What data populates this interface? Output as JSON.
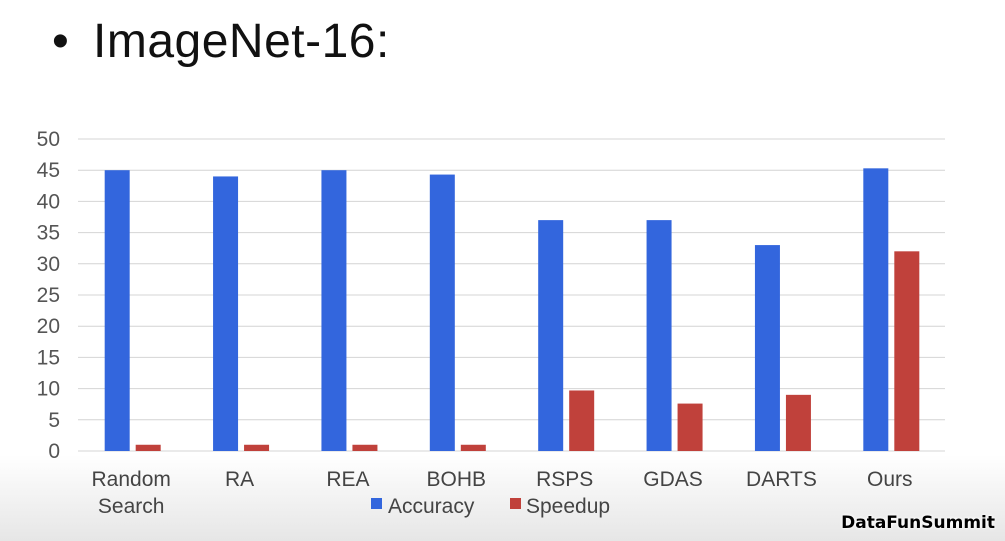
{
  "slide": {
    "bullet": "•",
    "title": "ImageNet-16:"
  },
  "chart_data": {
    "type": "bar",
    "title": "ImageNet-16:",
    "categories": [
      "Random\nSearch",
      "RA",
      "REA",
      "BOHB",
      "RSPS",
      "GDAS",
      "DARTS",
      "Ours"
    ],
    "series": [
      {
        "name": "Accuracy",
        "color": "#3366dd",
        "values": [
          45,
          44,
          45,
          44.3,
          37,
          37,
          33,
          45.3
        ]
      },
      {
        "name": "Speedup",
        "color": "#c0413b",
        "values": [
          1,
          1,
          1,
          1,
          9.7,
          7.6,
          9,
          32
        ]
      }
    ],
    "ylim": [
      0,
      50
    ],
    "yticks": [
      0,
      5,
      10,
      15,
      20,
      25,
      30,
      35,
      40,
      45,
      50
    ],
    "grid": true,
    "legend": "bottom-center",
    "xlabel": "",
    "ylabel": ""
  },
  "watermark": "DataFunSummit"
}
